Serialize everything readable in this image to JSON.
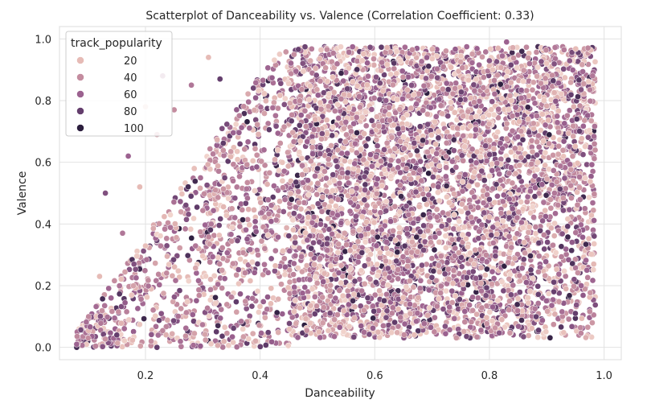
{
  "chart_data": {
    "type": "scatter",
    "title": "Scatterplot of Danceability vs. Valence (Correlation Coefficient: 0.33)",
    "xlabel": "Danceability",
    "ylabel": "Valence",
    "xlim": [
      0.05,
      1.03
    ],
    "ylim": [
      -0.04,
      1.04
    ],
    "x_ticks": [
      "0.2",
      "0.4",
      "0.6",
      "0.8",
      "1.0"
    ],
    "x_tick_values": [
      0.2,
      0.4,
      0.6,
      0.8,
      1.0
    ],
    "y_ticks": [
      "0.0",
      "0.2",
      "0.4",
      "0.6",
      "0.8",
      "1.0"
    ],
    "y_tick_values": [
      0.0,
      0.2,
      0.4,
      0.6,
      0.8,
      1.0
    ],
    "grid": true,
    "legend": {
      "title": "track_popularity",
      "placement": "top-left",
      "entries": [
        {
          "label": "20",
          "value": 20,
          "color": "#e6bbb6"
        },
        {
          "label": "40",
          "value": 40,
          "color": "#c48c9f"
        },
        {
          "label": "60",
          "value": 60,
          "color": "#9c6290"
        },
        {
          "label": "80",
          "value": 80,
          "color": "#643e6d"
        },
        {
          "label": "100",
          "value": 100,
          "color": "#2c1e3e"
        }
      ]
    },
    "correlation": 0.33,
    "points": [
      {
        "x": 0.08,
        "y": 0.0,
        "popularity": 90
      },
      {
        "x": 0.08,
        "y": 0.01,
        "popularity": 60
      },
      {
        "x": 0.1,
        "y": 0.03,
        "popularity": 40
      },
      {
        "x": 0.12,
        "y": 0.23,
        "popularity": 20
      },
      {
        "x": 0.13,
        "y": 0.5,
        "popularity": 70
      },
      {
        "x": 0.14,
        "y": 0.16,
        "popularity": 60
      },
      {
        "x": 0.15,
        "y": 0.04,
        "popularity": 80
      },
      {
        "x": 0.16,
        "y": 0.37,
        "popularity": 50
      },
      {
        "x": 0.17,
        "y": 0.62,
        "popularity": 60
      },
      {
        "x": 0.18,
        "y": 0.27,
        "popularity": 70
      },
      {
        "x": 0.19,
        "y": 0.52,
        "popularity": 20
      },
      {
        "x": 0.2,
        "y": 0.78,
        "popularity": 10
      },
      {
        "x": 0.21,
        "y": 0.02,
        "popularity": 40
      },
      {
        "x": 0.22,
        "y": 0.69,
        "popularity": 30
      },
      {
        "x": 0.22,
        "y": 0.0,
        "popularity": 80
      },
      {
        "x": 0.23,
        "y": 0.88,
        "popularity": 50
      },
      {
        "x": 0.25,
        "y": 0.77,
        "popularity": 40
      },
      {
        "x": 0.28,
        "y": 0.85,
        "popularity": 50
      },
      {
        "x": 0.31,
        "y": 0.94,
        "popularity": 20
      },
      {
        "x": 0.33,
        "y": 0.87,
        "popularity": 80
      },
      {
        "x": 0.95,
        "y": 0.11,
        "popularity": 80
      },
      {
        "x": 0.96,
        "y": 0.2,
        "popularity": 60
      },
      {
        "x": 0.97,
        "y": 0.25,
        "popularity": 60
      },
      {
        "x": 0.98,
        "y": 0.88,
        "popularity": 50
      },
      {
        "x": 0.83,
        "y": 0.99,
        "popularity": 60
      }
    ],
    "density_points": 6000
  }
}
